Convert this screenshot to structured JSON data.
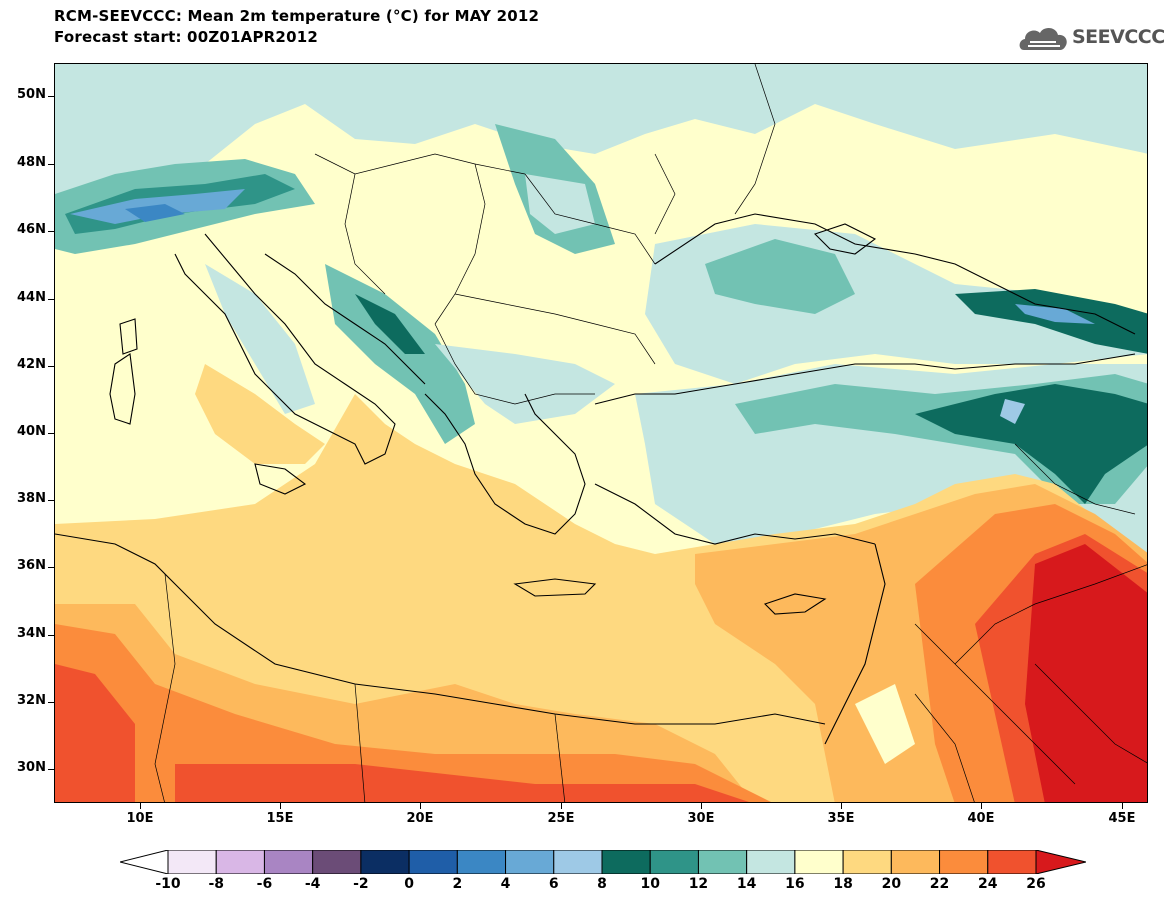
{
  "header": {
    "title_line1": "RCM-SEEVCCC: Mean 2m temperature (°C) for MAY 2012",
    "title_line2": "Forecast start: 00Z01APR2012"
  },
  "logo": {
    "text": "SEEVCCC",
    "icon": "cloud-icon"
  },
  "map": {
    "lat_labels": [
      "50N",
      "48N",
      "46N",
      "44N",
      "42N",
      "40N",
      "38N",
      "36N",
      "34N",
      "32N",
      "30N"
    ],
    "lon_labels": [
      "10E",
      "15E",
      "20E",
      "25E",
      "30E",
      "35E",
      "40E",
      "45E"
    ],
    "extent": {
      "lon": [
        7,
        46
      ],
      "lat": [
        29,
        51
      ]
    }
  },
  "colorbar": {
    "labels": [
      "-10",
      "-8",
      "-6",
      "-4",
      "-2",
      "0",
      "2",
      "4",
      "6",
      "8",
      "10",
      "12",
      "14",
      "16",
      "18",
      "20",
      "22",
      "24",
      "26"
    ],
    "under_color": "#ffffff",
    "over_color": "#d7191c",
    "colors": [
      "#f3e8f7",
      "#d9b7e6",
      "#a985c3",
      "#6b4c77",
      "#0b2e63",
      "#1f5ea8",
      "#3b87c4",
      "#68a9d6",
      "#9ec9e6",
      "#0d6b5e",
      "#2f9488",
      "#72c2b3",
      "#c4e6e1",
      "#ffffcc",
      "#fed980",
      "#fdb95c",
      "#fb8c3c",
      "#f0522e"
    ]
  }
}
